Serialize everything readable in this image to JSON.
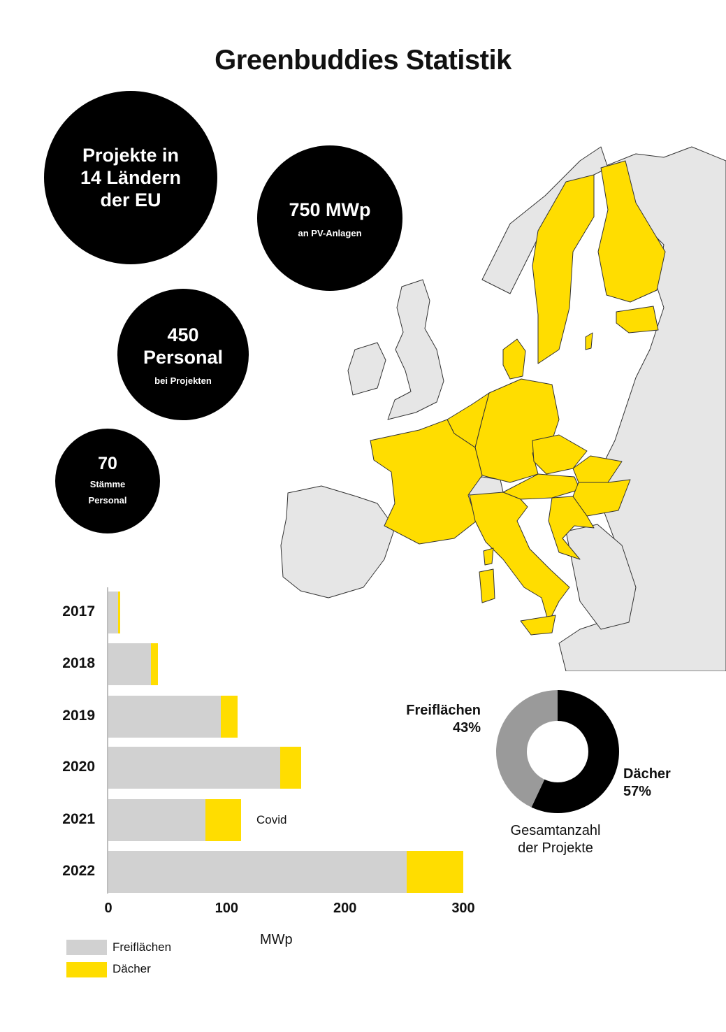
{
  "title": "Greenbuddies Statistik",
  "stats": {
    "projects": "Projekte in\n14 Ländern\nder EU",
    "capacity": "750 MWp",
    "capacity_sub": "an PV-Anlagen",
    "personal": "450\nPersonal",
    "personal_sub": "bei Projekten",
    "core_number": "70",
    "core_sub": "Stämme\nPersonal"
  },
  "colors": {
    "freiflaechen": "#d1d1d1",
    "daecher": "#ffdd00",
    "land_other": "#e6e6e6",
    "donut_freiflaechen": "#9a9a9a",
    "donut_daecher": "#000000"
  },
  "annotation": "Covid",
  "chart_data": [
    {
      "type": "bar",
      "orientation": "horizontal",
      "stacked": true,
      "categories": [
        "2017",
        "2018",
        "2019",
        "2020",
        "2021",
        "2022"
      ],
      "series": [
        {
          "name": "Freiflächen",
          "values": [
            8,
            36,
            95,
            145,
            82,
            252
          ]
        },
        {
          "name": "Dächer",
          "values": [
            2,
            6,
            14,
            18,
            30,
            48
          ]
        }
      ],
      "xlabel": "MWp",
      "xticks": [
        "0",
        "100",
        "200",
        "300"
      ],
      "xlim": [
        0,
        300
      ],
      "legend": "bottom-left"
    },
    {
      "type": "pie",
      "donut": true,
      "labels": [
        "Freiflächen",
        "Dächer"
      ],
      "values": [
        43,
        57
      ],
      "value_labels": [
        "43%",
        "57%"
      ],
      "caption": "Gesamtanzahl\nder Projekte"
    }
  ]
}
